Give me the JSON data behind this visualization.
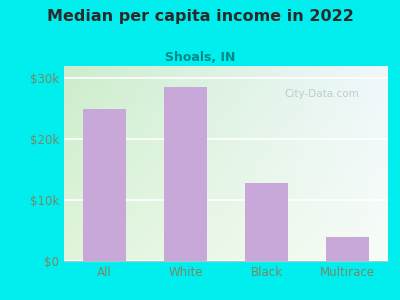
{
  "title": "Median per capita income in 2022",
  "subtitle": "Shoals, IN",
  "categories": [
    "All",
    "White",
    "Black",
    "Multirace"
  ],
  "values": [
    25000,
    28500,
    12800,
    4000
  ],
  "bar_color": "#c8a8d8",
  "outer_bg": "#00EEEE",
  "plot_bg_topleft": "#c8e8c8",
  "plot_bg_topright": "#e8f0f8",
  "plot_bg_bottom": "#e8f4e0",
  "title_color": "#2a2a2a",
  "subtitle_color": "#008888",
  "tick_color": "#778866",
  "ylim": [
    0,
    32000
  ],
  "yticks": [
    0,
    10000,
    20000,
    30000
  ],
  "ytick_labels": [
    "$0",
    "$10k",
    "$20k",
    "$30k"
  ],
  "watermark": "City-Data.com",
  "title_fontsize": 11.5,
  "subtitle_fontsize": 9
}
